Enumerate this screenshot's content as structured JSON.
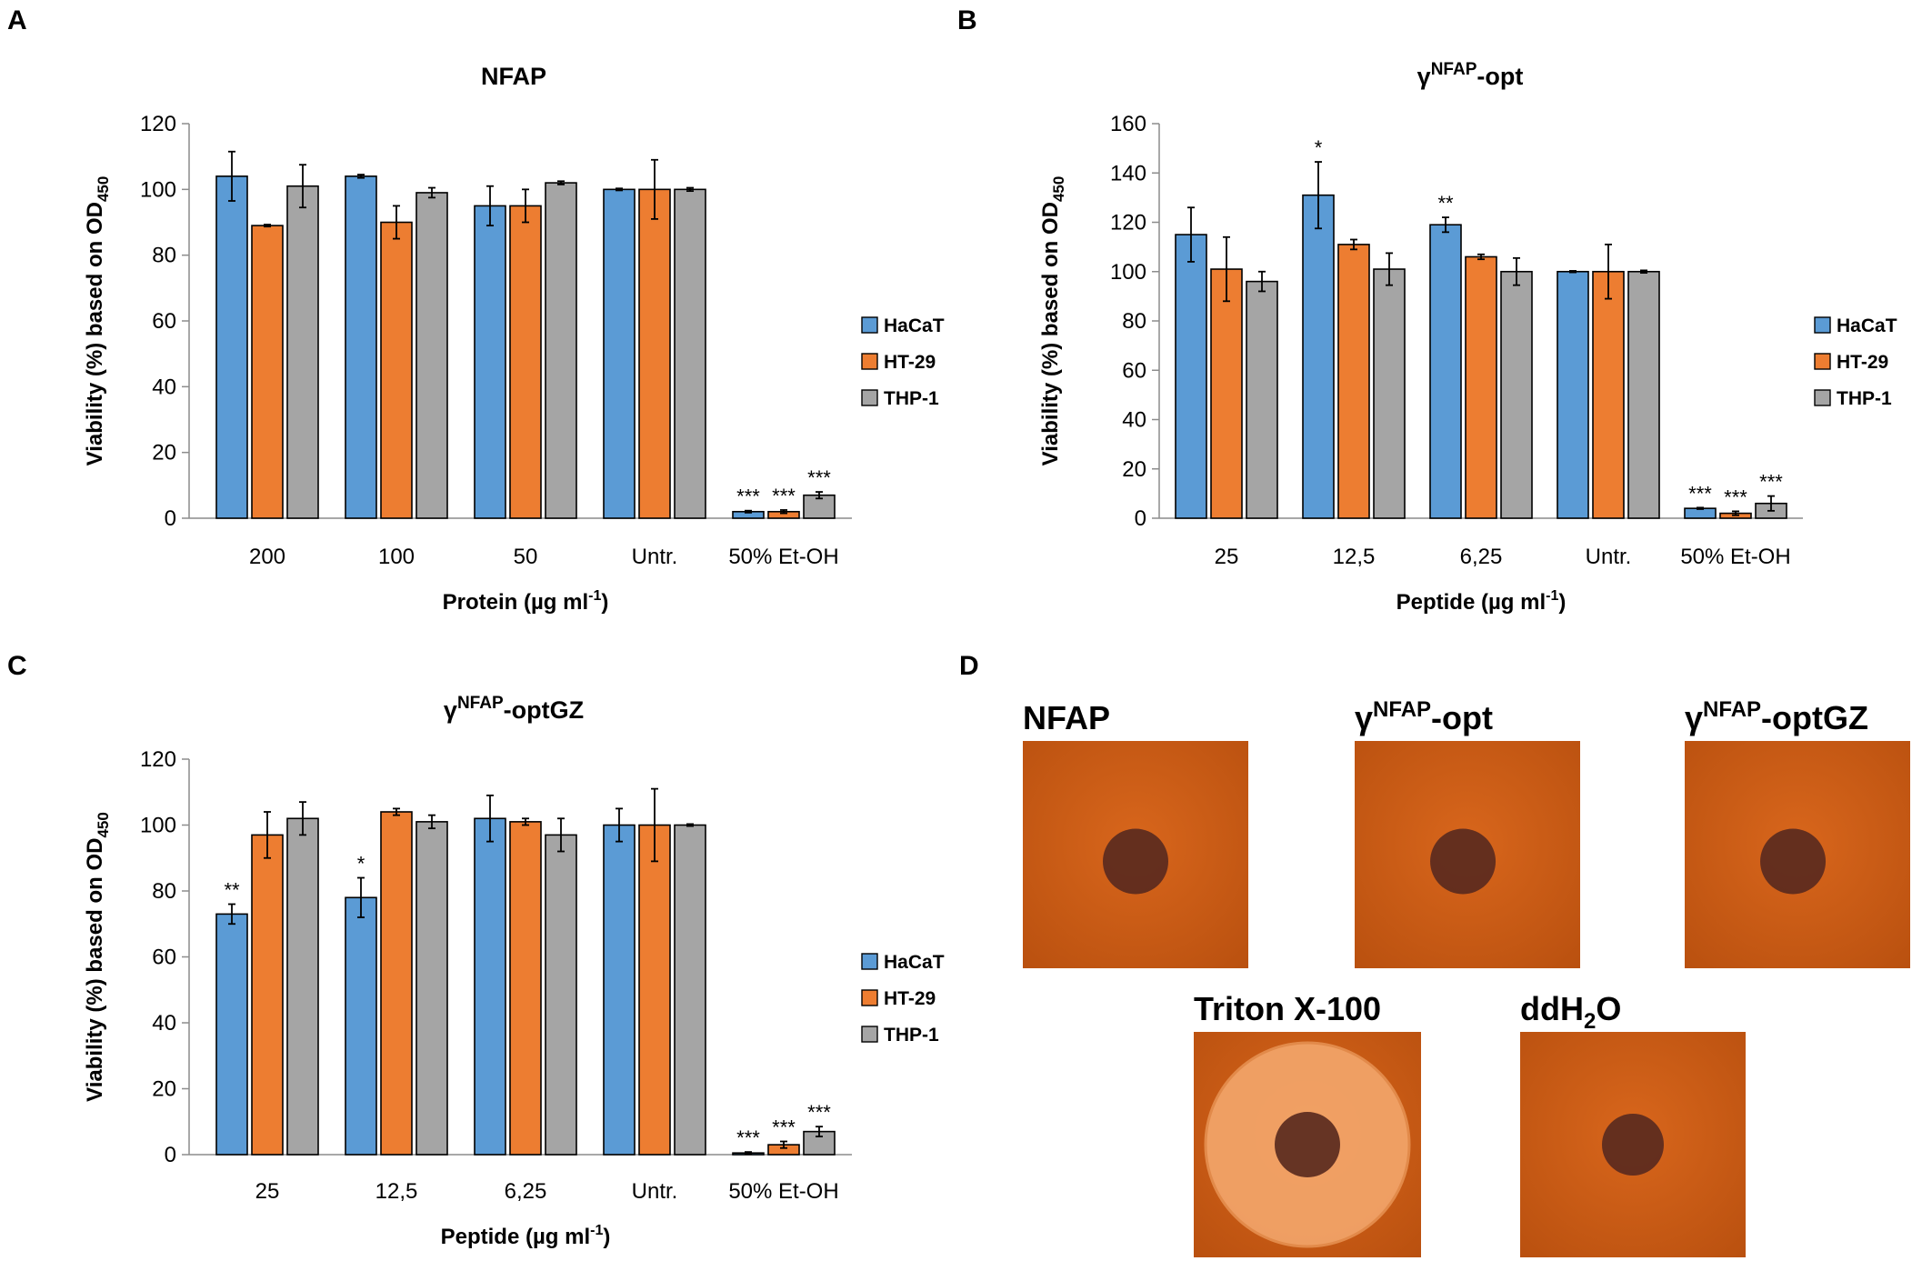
{
  "colors": {
    "HaCaT": "#5b9bd5",
    "HT-29": "#ed7d31",
    "THP-1": "#a5a5a5",
    "plate_base": "#c65a14",
    "plate_halo": "#f3a66b",
    "spot": "#5a2a1e"
  },
  "legend": [
    "HaCaT",
    "HT-29",
    "THP-1"
  ],
  "chart_data": [
    {
      "panel": "A",
      "type": "bar",
      "title": "NFAP",
      "title_sup": "",
      "title_suffix": "",
      "xlabel": "Protein (µg ml",
      "xlabel_sup": "-1",
      "xlabel_end": ")",
      "ylabel": "Viability (%) based on OD",
      "ylabel_sub": "450",
      "ylim": [
        0,
        120
      ],
      "yticks": [
        0,
        20,
        40,
        60,
        80,
        100,
        120
      ],
      "categories": [
        "200",
        "100",
        "50",
        "Untr.",
        "50% Et-OH"
      ],
      "series": [
        {
          "name": "HaCaT",
          "values": [
            104,
            104,
            95,
            100,
            2
          ],
          "errors": [
            7.5,
            0.5,
            6,
            0.3,
            0.3
          ],
          "sig": [
            "",
            "",
            "",
            "",
            "***"
          ]
        },
        {
          "name": "HT-29",
          "values": [
            89,
            90,
            95,
            100,
            2
          ],
          "errors": [
            0.3,
            5,
            5,
            9,
            0.5
          ],
          "sig": [
            "",
            "",
            "",
            "",
            "***"
          ]
        },
        {
          "name": "THP-1",
          "values": [
            101,
            99,
            102,
            100,
            7
          ],
          "errors": [
            6.5,
            1.5,
            0.5,
            0.5,
            1
          ],
          "sig": [
            "",
            "",
            "",
            "",
            "***"
          ]
        }
      ]
    },
    {
      "panel": "B",
      "type": "bar",
      "title": "γ",
      "title_sup": "NFAP",
      "title_suffix": "-opt",
      "xlabel": "Peptide (µg ml",
      "xlabel_sup": "-1",
      "xlabel_end": ")",
      "ylabel": "Viability (%) based on OD",
      "ylabel_sub": "450",
      "ylim": [
        0,
        160
      ],
      "yticks": [
        0,
        20,
        40,
        60,
        80,
        100,
        120,
        140,
        160
      ],
      "categories": [
        "25",
        "12,5",
        "6,25",
        "Untr.",
        "50% Et-OH"
      ],
      "series": [
        {
          "name": "HaCaT",
          "values": [
            115,
            131,
            119,
            100,
            4
          ],
          "errors": [
            11,
            13.5,
            3,
            0.3,
            0.3
          ],
          "sig": [
            "",
            "*",
            "**",
            "",
            "***"
          ]
        },
        {
          "name": "HT-29",
          "values": [
            101,
            111,
            106,
            100,
            2
          ],
          "errors": [
            13,
            2,
            1,
            11,
            0.8
          ],
          "sig": [
            "",
            "",
            "",
            "",
            "***"
          ]
        },
        {
          "name": "THP-1",
          "values": [
            96,
            101,
            100,
            100,
            6
          ],
          "errors": [
            4,
            6.5,
            5.5,
            0.5,
            3
          ],
          "sig": [
            "",
            "",
            "",
            "",
            "***"
          ]
        }
      ]
    },
    {
      "panel": "C",
      "type": "bar",
      "title": "γ",
      "title_sup": "NFAP",
      "title_suffix": "-optGZ",
      "xlabel": "Peptide (µg ml",
      "xlabel_sup": "-1",
      "xlabel_end": ")",
      "ylabel": "Viability (%) based on OD",
      "ylabel_sub": "450",
      "ylim": [
        0,
        120
      ],
      "yticks": [
        0,
        20,
        40,
        60,
        80,
        100,
        120
      ],
      "categories": [
        "25",
        "12,5",
        "6,25",
        "Untr.",
        "50% Et-OH"
      ],
      "series": [
        {
          "name": "HaCaT",
          "values": [
            73,
            78,
            102,
            100,
            0.5
          ],
          "errors": [
            3,
            6,
            7,
            5,
            0.3
          ],
          "sig": [
            "**",
            "*",
            "",
            "",
            "***"
          ]
        },
        {
          "name": "HT-29",
          "values": [
            97,
            104,
            101,
            100,
            3
          ],
          "errors": [
            7,
            1,
            1,
            11,
            1
          ],
          "sig": [
            "",
            "",
            "",
            "",
            "***"
          ]
        },
        {
          "name": "THP-1",
          "values": [
            102,
            101,
            97,
            100,
            7
          ],
          "errors": [
            5,
            2,
            5,
            0.3,
            1.5
          ],
          "sig": [
            "",
            "",
            "",
            "",
            "***"
          ]
        }
      ]
    }
  ],
  "panel_d": {
    "letter": "D",
    "plates": [
      {
        "label": "NFAP",
        "label_sup": "",
        "label_suffix": "",
        "label_sub": "",
        "label_end": "",
        "halo": false
      },
      {
        "label": "γ",
        "label_sup": "NFAP",
        "label_suffix": "-opt",
        "label_sub": "",
        "label_end": "",
        "halo": false
      },
      {
        "label": "γ",
        "label_sup": "NFAP",
        "label_suffix": "-optGZ",
        "label_sub": "",
        "label_end": "",
        "halo": false
      },
      {
        "label": "Triton X-100",
        "label_sup": "",
        "label_suffix": "",
        "label_sub": "",
        "label_end": "",
        "halo": true
      },
      {
        "label": "ddH",
        "label_sup": "",
        "label_suffix": "",
        "label_sub": "2",
        "label_end": "O",
        "halo": false
      }
    ]
  }
}
